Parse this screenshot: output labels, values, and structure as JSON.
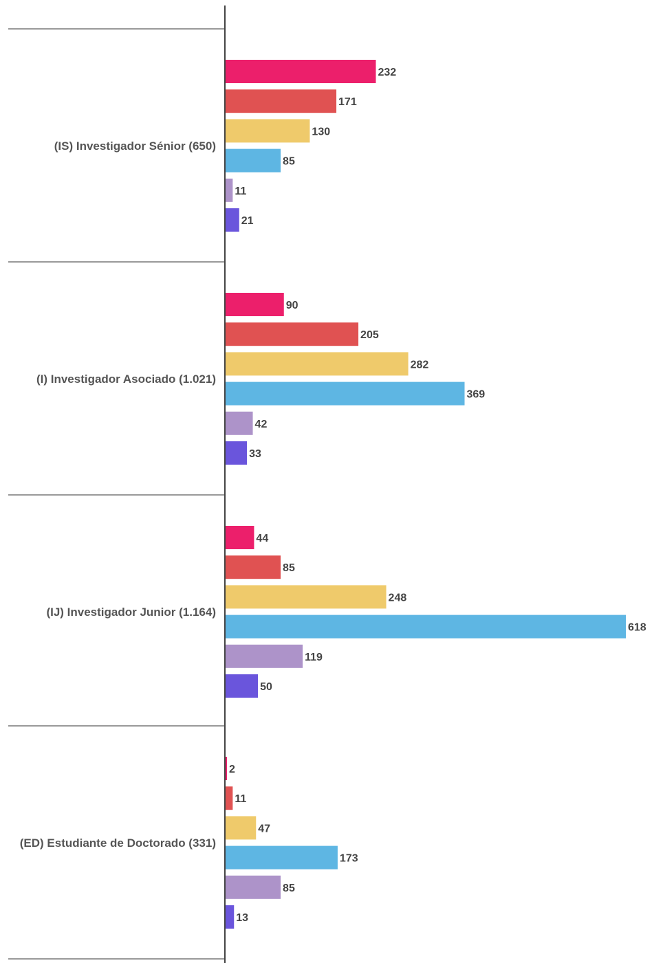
{
  "chart_data": {
    "type": "bar",
    "orientation": "horizontal",
    "categories": [
      "(IS) Investigador Sénior (650)",
      "(I) Investigador Asociado (1.021)",
      "(IJ) Investigador Junior (1.164)",
      "(ED) Estudiante de Doctorado (331)"
    ],
    "series": [
      {
        "color": "#ec1f6b",
        "values": [
          232,
          90,
          44,
          2
        ]
      },
      {
        "color": "#e05252",
        "values": [
          171,
          205,
          85,
          11
        ]
      },
      {
        "color": "#efca6b",
        "values": [
          130,
          282,
          248,
          47
        ]
      },
      {
        "color": "#5eb6e3",
        "values": [
          85,
          369,
          618,
          173
        ]
      },
      {
        "color": "#ad93c9",
        "values": [
          11,
          42,
          119,
          85
        ]
      },
      {
        "color": "#6a55dc",
        "values": [
          21,
          33,
          50,
          13
        ]
      }
    ],
    "xlim": [
      0,
      618
    ],
    "grid": false,
    "legend": "none",
    "data_labels": true
  }
}
